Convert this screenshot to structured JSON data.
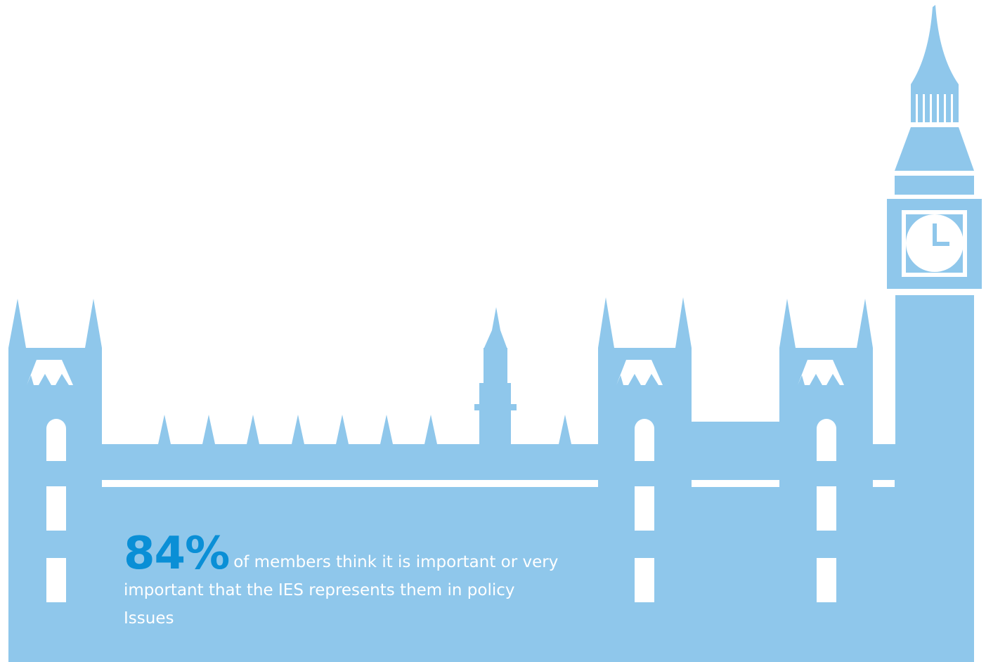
{
  "stat": {
    "value": "84%",
    "text": "of members think it is important or very important that the IES represents them in policy Issues"
  }
}
